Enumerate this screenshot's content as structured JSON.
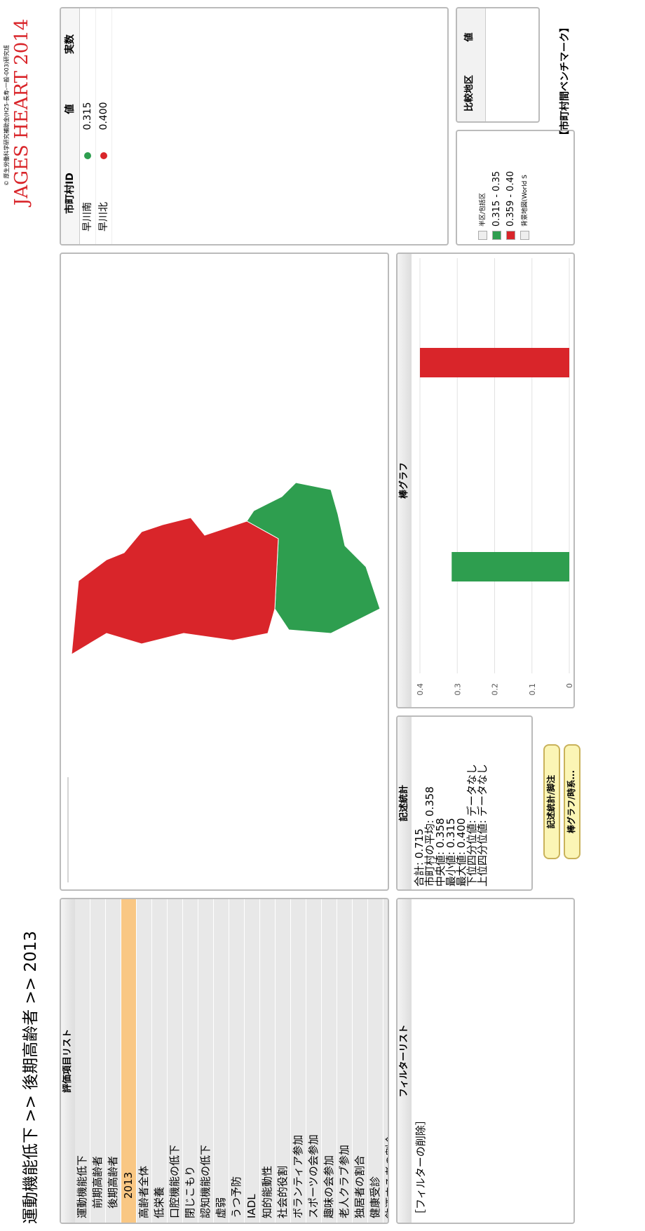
{
  "header": {
    "title": "運動機能低下 >> 後期高齢者 >> 2013",
    "copyright": "© 厚生労働科学研究補助金(H25-長寿-一般-003)研究班",
    "brand": "JAGES HEART 2014"
  },
  "tree": {
    "title": "評価項目リスト",
    "items": [
      "運動機能低下",
      "前期高齢者",
      "後期高齢者",
      "2013",
      "高齢者全体",
      "低栄養",
      "口腔機能の低下",
      "閉じこもり",
      "認知機能の低下",
      "虚弱",
      "うつ予防",
      "IADL",
      "知的能動性",
      "社会的役割",
      "ボランティア参加",
      "スポーツの会参加",
      "趣味の会参加",
      "老人クラブ参加",
      "独居者の割合",
      "健康受診",
      "飲酒する者の割合"
    ]
  },
  "filter": {
    "title": "フィルターリスト",
    "items": [
      "［フィルターの削除］"
    ]
  },
  "stats": {
    "title": "記述統計",
    "lines": [
      "合計: 0.715",
      "市町村の平均: 0.358",
      "中央値: 0.358",
      "最小値: 0.315",
      "最大値: 0.400",
      "下位四分位値: データなし",
      "上位四分位値: データなし"
    ]
  },
  "buttons": [
    "記述統計/脚注",
    "棒グラフ/時系..."
  ],
  "table": {
    "headers": [
      "市町村ID",
      "値",
      "実数"
    ],
    "rows": [
      [
        "早川南",
        "0.315"
      ],
      [
        "早川北",
        "0.400"
      ]
    ],
    "colors": [
      "#2e9e4f",
      "#d9252a"
    ]
  },
  "legend": {
    "items": [
      "半区/包括区",
      "0.315 - 0.35",
      "0.359 - 0.40",
      "背景地図(World S"
    ],
    "colors": [
      "#2e9e4f",
      "#d9252a"
    ]
  },
  "compare": {
    "headers": [
      "比較地区",
      "値"
    ]
  },
  "footer": "【市町村間ベンチマーク】",
  "chart_data": {
    "type": "bar",
    "title": "棒グラフ",
    "categories": [
      null,
      null
    ],
    "values": [
      0.315,
      0.4
    ],
    "colors": [
      "#2e9e4f",
      "#d9252a"
    ],
    "ylim": [
      0,
      0.4
    ],
    "yticks": [
      0,
      0.1,
      0.2,
      0.3,
      0.4
    ],
    "grid": true
  }
}
